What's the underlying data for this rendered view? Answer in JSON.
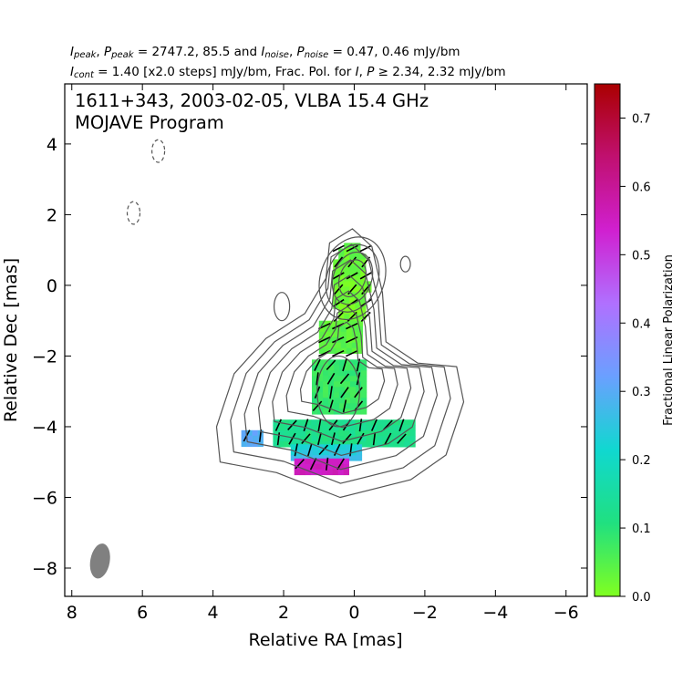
{
  "header": {
    "line1": {
      "a": "I",
      "a_sub": "peak",
      "sep1": ", ",
      "b": "P",
      "b_sub": "peak",
      "t1": " = 2747.2, 85.5 and ",
      "c": "I",
      "c_sub": "noise",
      "sep2": ", ",
      "d": "P",
      "d_sub": "noise",
      "t2": " = 0.47, 0.46 mJy/bm"
    },
    "line2": {
      "a": "I",
      "a_sub": "cont",
      "t1": " = 1.40 [x2.0 steps] mJy/bm, Frac. Pol. for ",
      "b": "I",
      "sep": ", ",
      "c": "P",
      "t2": " ≥ 2.34, 2.32 mJy/bm"
    }
  },
  "plot_title": {
    "line1": "1611+343, 2003-02-05, VLBA 15.4 GHz",
    "line2": "MOJAVE Program"
  },
  "colors": {
    "contour": "#555555",
    "beam": "#808080",
    "colormap": [
      "#80ff20",
      "#20e080",
      "#10d8d0",
      "#6aa0ff",
      "#b070ff",
      "#d020d0",
      "#c01070",
      "#aa0000"
    ]
  },
  "chart_data": {
    "type": "heatmap",
    "xlabel": "Relative RA [mas]",
    "ylabel": "Relative Dec [mas]",
    "xlim": [
      8.2,
      -6.6
    ],
    "ylim": [
      -8.8,
      5.7
    ],
    "x_ticks": [
      8,
      6,
      4,
      2,
      0,
      -2,
      -4,
      -6
    ],
    "x_tick_labels": [
      "8",
      "6",
      "4",
      "2",
      "0",
      "−2",
      "−4",
      "−6"
    ],
    "y_ticks": [
      4,
      2,
      0,
      -2,
      -4,
      -6,
      -8
    ],
    "y_tick_labels": [
      "4",
      "2",
      "0",
      "−2",
      "−4",
      "−6",
      "−8"
    ],
    "colorbar": {
      "label": "Fractional Linear Polarization",
      "ticks": [
        0.0,
        0.1,
        0.2,
        0.3,
        0.4,
        0.5,
        0.6,
        0.7
      ],
      "tick_labels": [
        "0.0",
        "0.1",
        "0.2",
        "0.3",
        "0.4",
        "0.5",
        "0.6",
        "0.7"
      ],
      "range": [
        0.0,
        0.75
      ]
    },
    "contour_levels_mJy": [
      1.4,
      2.8,
      5.6,
      11.2,
      22.4,
      44.8,
      89.6,
      179.2,
      358.4,
      716.8,
      1433.6
    ],
    "beam": {
      "x": 7.2,
      "y": -7.8,
      "major": 1.0,
      "minor": 0.55,
      "pa_deg": -10
    },
    "polarization_regions": [
      {
        "x": [
          -0.4,
          0.6
        ],
        "y": [
          -1.2,
          1.2
        ],
        "frac": 0.02
      },
      {
        "x": [
          -0.3,
          1.0
        ],
        "y": [
          -2.0,
          -1.0
        ],
        "frac": 0.04
      },
      {
        "x": [
          -0.3,
          1.2
        ],
        "y": [
          -3.7,
          -2.1
        ],
        "frac": 0.08
      },
      {
        "x": [
          -1.7,
          2.3
        ],
        "y": [
          -4.5,
          -3.8
        ],
        "frac": 0.12
      },
      {
        "x": [
          -0.2,
          1.8
        ],
        "y": [
          -4.9,
          -4.5
        ],
        "frac": 0.24
      },
      {
        "x": [
          0.1,
          1.7
        ],
        "y": [
          -5.4,
          -4.9
        ],
        "frac": 0.55
      },
      {
        "x": [
          2.6,
          3.2
        ],
        "y": [
          -4.5,
          -4.1
        ],
        "frac": 0.3
      }
    ],
    "negative_contours": [
      {
        "x": 5.55,
        "y": 3.8
      },
      {
        "x": 6.25,
        "y": 2.05
      }
    ]
  }
}
